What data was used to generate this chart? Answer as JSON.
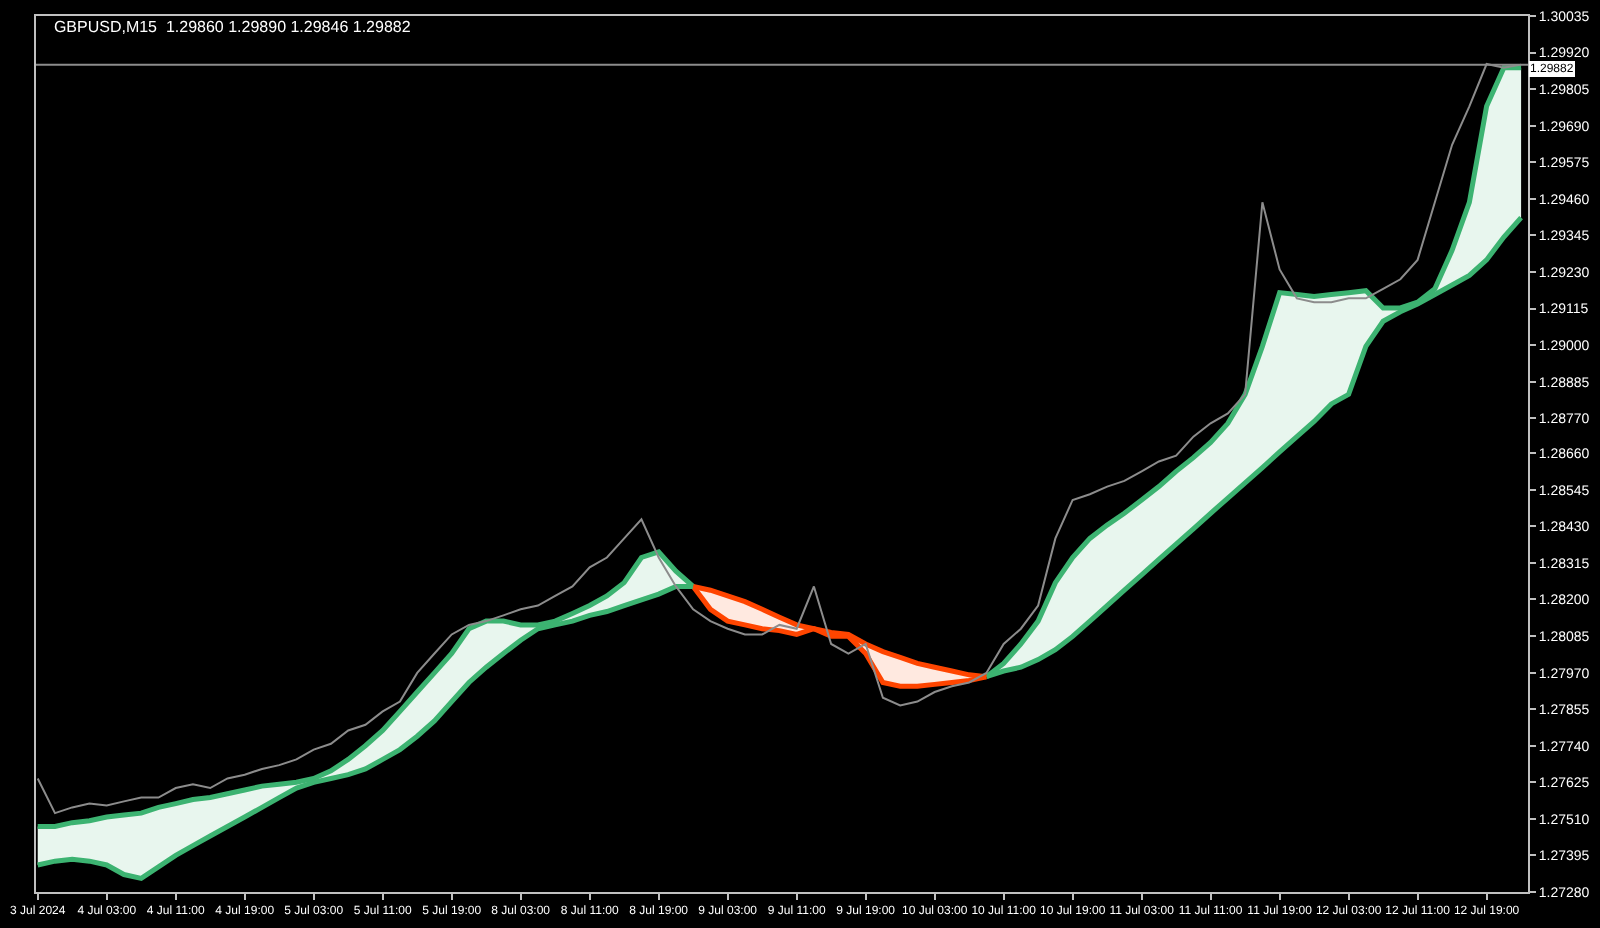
{
  "chart_data": {
    "type": "line",
    "title": "GBPUSD,M15  1.29860 1.29890 1.29846 1.29882",
    "categories": [
      "3 Jul 2024",
      null,
      null,
      null,
      "4 Jul 03:00",
      null,
      null,
      null,
      "4 Jul 11:00",
      null,
      null,
      null,
      "4 Jul 19:00",
      null,
      null,
      null,
      "5 Jul 03:00",
      null,
      null,
      null,
      "5 Jul 11:00",
      null,
      null,
      null,
      "5 Jul 19:00",
      null,
      null,
      null,
      "8 Jul 03:00",
      null,
      null,
      null,
      "8 Jul 11:00",
      null,
      null,
      null,
      "8 Jul 19:00",
      null,
      null,
      null,
      "9 Jul 03:00",
      null,
      null,
      null,
      "9 Jul 11:00",
      null,
      null,
      null,
      "9 Jul 19:00",
      null,
      null,
      null,
      "10 Jul 03:00",
      null,
      null,
      null,
      "10 Jul 11:00",
      null,
      null,
      null,
      "10 Jul 19:00",
      null,
      null,
      null,
      "11 Jul 03:00",
      null,
      null,
      null,
      "11 Jul 11:00",
      null,
      null,
      null,
      "11 Jul 19:00",
      null,
      null,
      null,
      "12 Jul 03:00",
      null,
      null,
      null,
      "12 Jul 11:00",
      null,
      null,
      null,
      "12 Jul 19:00",
      null,
      null
    ],
    "series": [
      {
        "color": "#8c8c8c",
        "values": [
          1.27637,
          1.27528,
          1.27546,
          1.27558,
          1.27552,
          1.27565,
          1.27577,
          1.27577,
          1.27607,
          1.27619,
          1.27607,
          1.27637,
          1.27649,
          1.27667,
          1.27679,
          1.27697,
          1.27728,
          1.27746,
          1.27788,
          1.27806,
          1.27848,
          1.27879,
          1.27969,
          1.2803,
          1.2809,
          1.2812,
          1.28132,
          1.2815,
          1.28169,
          1.28181,
          1.28211,
          1.28241,
          1.28301,
          1.28332,
          1.28392,
          1.28452,
          1.28332,
          1.28241,
          1.28169,
          1.28132,
          1.28108,
          1.2809,
          1.2809,
          1.2812,
          1.28108,
          1.28241,
          1.2806,
          1.2803,
          1.2806,
          1.27891,
          1.27867,
          1.27879,
          1.27909,
          1.27927,
          1.27939,
          1.27969,
          1.2806,
          1.28108,
          1.28181,
          1.28392,
          1.28513,
          1.28531,
          1.28555,
          1.28573,
          1.28603,
          1.28634,
          1.28652,
          1.28712,
          1.28754,
          1.28785,
          1.28845,
          1.29449,
          1.29238,
          1.29147,
          1.29135,
          1.29135,
          1.29147,
          1.29147,
          1.29177,
          1.29207,
          1.29268,
          1.29449,
          1.2963,
          1.29751,
          1.29884,
          1.29872,
          1.29882
        ]
      },
      {
        "color": "#3cb371",
        "values": [
          1.27486,
          1.27486,
          1.27498,
          1.27504,
          1.27516,
          1.27522,
          1.27528,
          1.27546,
          1.27558,
          1.27571,
          1.27577,
          1.27589,
          1.27601,
          1.27613,
          1.27619,
          1.27625,
          1.27637,
          1.27661,
          1.27697,
          1.2774,
          1.27788,
          1.27848,
          1.27909,
          1.27969,
          1.2803,
          1.28108,
          1.28132,
          1.28132,
          1.2812,
          1.2812,
          1.28132,
          1.28156,
          1.28181,
          1.28211,
          1.28253,
          1.28332,
          1.2835,
          1.28289,
          1.28241,
          null,
          null,
          null,
          null,
          null,
          null,
          null,
          null,
          null,
          null,
          null,
          null,
          null,
          null,
          null,
          null,
          1.27957,
          1.27999,
          1.2806,
          1.28132,
          1.28253,
          1.28332,
          1.28392,
          1.28434,
          1.28471,
          1.28513,
          1.28555,
          1.28603,
          1.28646,
          1.28694,
          1.28754,
          1.28845,
          1.28996,
          1.29165,
          1.29159,
          1.29153,
          1.29159,
          1.29165,
          1.29171,
          1.29117,
          1.29117,
          1.29135,
          1.29177,
          1.29298,
          1.29449,
          1.29751,
          1.29872,
          1.29872
        ],
        "lower": [
          1.27365,
          1.27377,
          1.27383,
          1.27377,
          1.27365,
          1.27335,
          1.27323,
          1.27359,
          1.27395,
          1.27426,
          1.27456,
          1.27486,
          1.27516,
          1.27546,
          1.27577,
          1.27607,
          1.27625,
          1.27637,
          1.27649,
          1.27667,
          1.27697,
          1.27728,
          1.2777,
          1.27818,
          1.27879,
          1.27939,
          1.27987,
          1.2803,
          1.28072,
          1.28108,
          1.2812,
          1.28132,
          1.2815,
          1.28162,
          1.28181,
          1.28199,
          1.28217,
          1.28241,
          1.28241,
          null,
          null,
          null,
          null,
          null,
          null,
          null,
          null,
          null,
          null,
          null,
          null,
          null,
          null,
          null,
          null,
          1.27957,
          1.27975,
          1.27987,
          1.28011,
          1.28042,
          1.28084,
          1.28132,
          1.28181,
          1.28229,
          1.28277,
          1.28326,
          1.28374,
          1.28422,
          1.28471,
          1.28519,
          1.28567,
          1.28615,
          1.28664,
          1.28712,
          1.2876,
          1.28815,
          1.28845,
          1.28996,
          1.29075,
          1.29105,
          1.29129,
          1.29159,
          1.29189,
          1.29219,
          1.29268,
          1.2934,
          1.29401
        ],
        "upper": [
          1.27486,
          1.27486,
          1.27498,
          1.27504,
          1.27516,
          1.27522,
          1.27528,
          1.27546,
          1.27558,
          1.27571,
          1.27577,
          1.27589,
          1.27601,
          1.27613,
          1.27619,
          1.27625,
          1.27637,
          1.27661,
          1.27697,
          1.2774,
          1.27788,
          1.27848,
          1.27909,
          1.27969,
          1.2803,
          1.28108,
          1.28132,
          1.28132,
          1.2812,
          1.2812,
          1.28132,
          1.28156,
          1.28181,
          1.28211,
          1.28253,
          1.28332,
          1.2835,
          1.28289,
          1.28241,
          null,
          null,
          null,
          null,
          null,
          null,
          null,
          null,
          null,
          null,
          null,
          null,
          null,
          null,
          null,
          null,
          1.27957,
          1.27999,
          1.2806,
          1.28132,
          1.28253,
          1.28332,
          1.28392,
          1.28434,
          1.28471,
          1.28513,
          1.28555,
          1.28603,
          1.28646,
          1.28694,
          1.28754,
          1.28845,
          1.28996,
          1.29165,
          1.29159,
          1.29153,
          1.29159,
          1.29165,
          1.29171,
          1.29117,
          1.29117,
          1.29135,
          1.29177,
          1.29298,
          1.29449,
          1.29751,
          1.29872,
          1.29872
        ]
      },
      {
        "color": "#ff4500",
        "values": [
          null,
          null,
          null,
          null,
          null,
          null,
          null,
          null,
          null,
          null,
          null,
          null,
          null,
          null,
          null,
          null,
          null,
          null,
          null,
          null,
          null,
          null,
          null,
          null,
          null,
          null,
          null,
          null,
          null,
          null,
          null,
          null,
          null,
          null,
          null,
          null,
          null,
          null,
          1.28241,
          1.28169,
          1.28132,
          1.2812,
          1.28108,
          1.28102,
          1.2809,
          1.28108,
          1.28084,
          1.28084,
          1.2803,
          1.27939,
          1.27927,
          1.27927,
          1.27933,
          1.27939,
          1.27945,
          1.27957,
          null,
          null,
          null,
          null,
          null,
          null,
          null,
          null,
          null,
          null,
          null,
          null,
          null,
          null,
          null,
          null,
          null,
          null,
          null,
          null,
          null,
          null,
          null,
          null,
          null,
          null,
          null,
          null,
          null,
          null,
          null
        ],
        "lower": [
          null,
          null,
          null,
          null,
          null,
          null,
          null,
          null,
          null,
          null,
          null,
          null,
          null,
          null,
          null,
          null,
          null,
          null,
          null,
          null,
          null,
          null,
          null,
          null,
          null,
          null,
          null,
          null,
          null,
          null,
          null,
          null,
          null,
          null,
          null,
          null,
          null,
          null,
          1.28241,
          1.28169,
          1.28132,
          1.2812,
          1.28108,
          1.28102,
          1.2809,
          1.28108,
          1.28084,
          1.28084,
          1.2803,
          1.27939,
          1.27927,
          1.27927,
          1.27933,
          1.27939,
          1.27945,
          1.27957,
          null,
          null,
          null,
          null,
          null,
          null,
          null,
          null,
          null,
          null,
          null,
          null,
          null,
          null,
          null,
          null,
          null,
          null,
          null,
          null,
          null,
          null,
          null,
          null,
          null,
          null,
          null,
          null,
          null,
          null,
          null
        ],
        "upper": [
          null,
          null,
          null,
          null,
          null,
          null,
          null,
          null,
          null,
          null,
          null,
          null,
          null,
          null,
          null,
          null,
          null,
          null,
          null,
          null,
          null,
          null,
          null,
          null,
          null,
          null,
          null,
          null,
          null,
          null,
          null,
          null,
          null,
          null,
          null,
          null,
          null,
          null,
          1.28241,
          1.28229,
          1.28211,
          1.28193,
          1.28169,
          1.28144,
          1.2812,
          1.28108,
          1.28096,
          1.2809,
          1.2806,
          1.28036,
          1.28018,
          1.27999,
          1.27987,
          1.27975,
          1.27963,
          1.27957,
          null,
          null,
          null,
          null,
          null,
          null,
          null,
          null,
          null,
          null,
          null,
          null,
          null,
          null,
          null,
          null,
          null,
          null,
          null,
          null,
          null,
          null,
          null,
          null,
          null,
          null,
          null,
          null,
          null,
          null,
          null
        ]
      },
      {
        "color": "#3cb371",
        "values": [
          1.27365,
          1.27377,
          1.27383,
          1.27377,
          1.27365,
          1.27335,
          1.27323,
          1.27359,
          1.27395,
          1.27426,
          1.27456,
          1.27486,
          1.27516,
          1.27546,
          1.27577,
          1.27607,
          1.27625,
          1.27637,
          1.27649,
          1.27667,
          1.27697,
          1.27728,
          1.2777,
          1.27818,
          1.27879,
          1.27939,
          1.27987,
          1.2803,
          1.28072,
          1.28108,
          1.2812,
          1.28132,
          1.2815,
          1.28162,
          1.28181,
          1.28199,
          1.28217,
          1.28241,
          1.28241,
          null,
          null,
          null,
          null,
          null,
          null,
          null,
          null,
          null,
          null,
          null,
          null,
          null,
          null,
          null,
          null,
          1.27957,
          1.27975,
          1.27987,
          1.28011,
          1.28042,
          1.28084,
          1.28132,
          1.28181,
          1.28229,
          1.28277,
          1.28326,
          1.28374,
          1.28422,
          1.28471,
          1.28519,
          1.28567,
          1.28615,
          1.28664,
          1.28712,
          1.2876,
          1.28815,
          1.28845,
          1.28996,
          1.29075,
          1.29105,
          1.29129,
          1.29159,
          1.29189,
          1.29219,
          1.29268,
          1.2934,
          1.29401
        ]
      },
      {
        "color": "#ff4500",
        "values": [
          null,
          null,
          null,
          null,
          null,
          null,
          null,
          null,
          null,
          null,
          null,
          null,
          null,
          null,
          null,
          null,
          null,
          null,
          null,
          null,
          null,
          null,
          null,
          null,
          null,
          null,
          null,
          null,
          null,
          null,
          null,
          null,
          null,
          null,
          null,
          null,
          null,
          null,
          1.28241,
          1.28229,
          1.28211,
          1.28193,
          1.28169,
          1.28144,
          1.2812,
          1.28108,
          1.28096,
          1.2809,
          1.2806,
          1.28036,
          1.28018,
          1.27999,
          1.27987,
          1.27975,
          1.27963,
          1.27957,
          null,
          null,
          null,
          null,
          null,
          null,
          null,
          null,
          null,
          null,
          null,
          null,
          null,
          null,
          null,
          null,
          null,
          null,
          null,
          null,
          null,
          null,
          null,
          null,
          null,
          null,
          null,
          null,
          null,
          null,
          null
        ]
      }
    ],
    "ylim": [
      1.2728,
      1.30035
    ],
    "yticks": [
      1.30035,
      {
        "value": 1.2992,
        "label": "1.29920"
      },
      1.29805,
      {
        "value": 1.2969,
        "label": "1.29690"
      },
      1.29575,
      {
        "value": 1.2946,
        "label": "1.29460"
      },
      1.29345,
      {
        "value": 1.2923,
        "label": "1.29230"
      },
      1.29115,
      {
        "value": 1.29,
        "label": "1.29000"
      },
      1.28885,
      {
        "value": 1.2877,
        "label": "1.28770"
      },
      {
        "value": 1.2866,
        "label": "1.28660"
      },
      1.28545,
      {
        "value": 1.2843,
        "label": "1.28430"
      },
      1.28315,
      {
        "value": 1.282,
        "label": "1.28200"
      },
      1.28085,
      {
        "value": 1.2797,
        "label": "1.27970"
      },
      1.27855,
      {
        "value": 1.2774,
        "label": "1.27740"
      },
      1.27625,
      {
        "value": 1.2751,
        "label": "1.27510"
      },
      1.27395,
      {
        "value": 1.2728,
        "label": "1.27280"
      }
    ],
    "ref_lines": [
      {
        "axis": "y",
        "value": 1.29882,
        "label": "1.29882",
        "color": "#8c8c8c"
      }
    ],
    "grid": false
  }
}
